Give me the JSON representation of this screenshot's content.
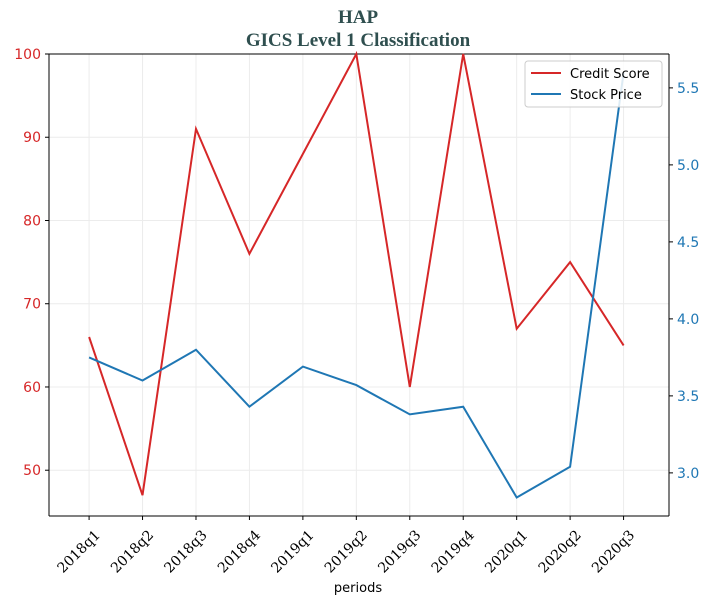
{
  "chart_data": {
    "type": "line",
    "title": "HAP",
    "subtitle": "GICS Level 1 Classification",
    "xlabel": "periods",
    "ylabel": "",
    "ylabel_right": "",
    "categories": [
      "2018q1",
      "2018q2",
      "2018q3",
      "2018q4",
      "2019q1",
      "2019q2",
      "2019q3",
      "2019q4",
      "2020q1",
      "2020q2",
      "2020q3"
    ],
    "series": [
      {
        "name": "Credit Score",
        "axis": "left",
        "color": "#d62728",
        "values": [
          66,
          47,
          91,
          76,
          88,
          100,
          60,
          100,
          67,
          75,
          65
        ]
      },
      {
        "name": "Stock Price",
        "axis": "right",
        "color": "#1f77b4",
        "values": [
          3.75,
          3.6,
          3.8,
          3.43,
          3.69,
          3.57,
          3.38,
          3.43,
          2.84,
          3.04,
          5.6
        ]
      }
    ],
    "ylim": [
      44.5,
      100
    ],
    "y_ticks": [
      50,
      60,
      70,
      80,
      90,
      100
    ],
    "ylim_right": [
      2.72,
      5.72
    ],
    "y_ticks_right": [
      3.0,
      3.5,
      4.0,
      4.5,
      5.0,
      5.5
    ],
    "y_tick_labels_right": [
      "3.0",
      "3.5",
      "4.0",
      "4.5",
      "5.0",
      "5.5"
    ],
    "grid": true,
    "legend_position": "upper-right"
  }
}
